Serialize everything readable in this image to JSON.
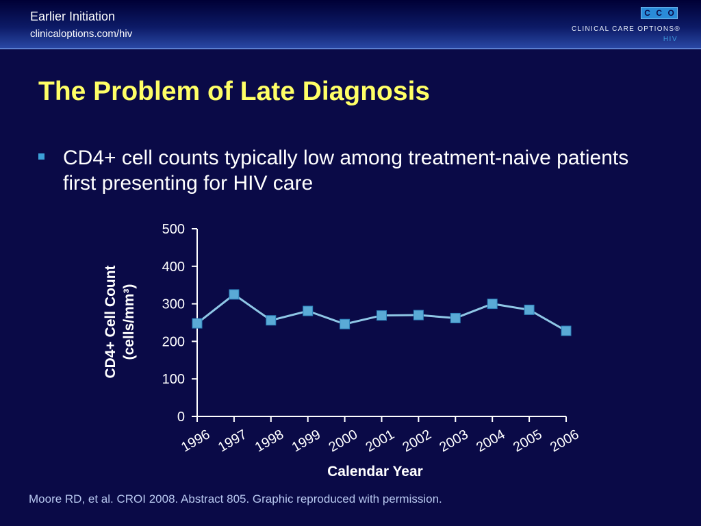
{
  "header": {
    "section_title": "Earlier Initiation",
    "url": "clinicaloptions.com/hiv",
    "logo_mark": [
      "C",
      "C",
      "O"
    ],
    "logo_name": "CLINICAL CARE OPTIONS®",
    "logo_sub": "HIV"
  },
  "slide": {
    "title": "The Problem of Late Diagnosis",
    "bullet": "CD4+ cell counts typically low among treatment-naive patients first presenting for HIV care"
  },
  "chart_data": {
    "type": "line",
    "title": "",
    "ylabel_line1": "CD4+ Cell Count",
    "ylabel_line2": "(cells/mm³)",
    "xlabel": "Calendar Year",
    "categories": [
      "1996",
      "1997",
      "1998",
      "1999",
      "2000",
      "2001",
      "2002",
      "2003",
      "2004",
      "2005",
      "2006"
    ],
    "series": [
      {
        "values": [
          248,
          325,
          256,
          281,
          246,
          269,
          270,
          262,
          300,
          284,
          228
        ]
      }
    ],
    "ylim": [
      0,
      500
    ],
    "yticks": [
      0,
      100,
      200,
      300,
      400,
      500
    ],
    "grid": false,
    "colors": {
      "line": "#8fc7e6",
      "marker": "#5aaad6",
      "axis": "#ffffff"
    }
  },
  "citation": "Moore RD, et al. CROI 2008. Abstract 805. Graphic reproduced with permission."
}
